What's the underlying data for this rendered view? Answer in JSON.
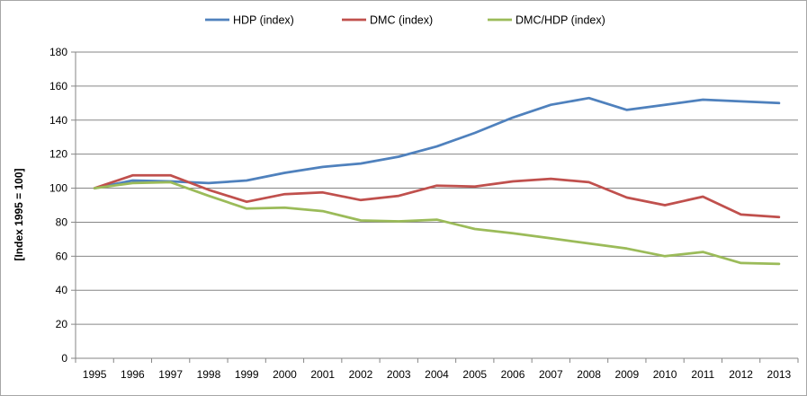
{
  "chart_data": {
    "type": "line",
    "title": "",
    "xlabel": "",
    "ylabel": "[Index 1995 = 100]",
    "x": [
      1995,
      1996,
      1997,
      1998,
      1999,
      2000,
      2001,
      2002,
      2003,
      2004,
      2005,
      2006,
      2007,
      2008,
      2009,
      2010,
      2011,
      2012,
      2013
    ],
    "x_tick_labels": [
      "1995",
      "1996",
      "1997",
      "1998",
      "1999",
      "2000",
      "2001",
      "2002",
      "2003",
      "2004",
      "2005",
      "2006",
      "2007",
      "2008",
      "2009",
      "2010",
      "2011",
      "2012",
      "2013"
    ],
    "ylim": [
      0,
      180
    ],
    "y_ticks": [
      0,
      20,
      40,
      60,
      80,
      100,
      120,
      140,
      160,
      180
    ],
    "y_tick_labels": [
      "0",
      "20",
      "40",
      "60",
      "80",
      "100",
      "120",
      "140",
      "160",
      "180"
    ],
    "grid": "horizontal",
    "legend_position": "top",
    "series": [
      {
        "name": "HDP (index)",
        "color": "#4f81bd",
        "values": [
          100,
          104.5,
          104,
          103,
          104.5,
          109,
          112.5,
          114.5,
          118.5,
          124.5,
          132.5,
          141.5,
          149,
          153,
          146,
          149,
          152,
          151,
          150
        ]
      },
      {
        "name": "DMC (index)",
        "color": "#c0504d",
        "values": [
          100,
          107.5,
          107.5,
          99,
          92,
          96.5,
          97.5,
          93,
          95.5,
          101.5,
          101,
          104,
          105.5,
          103.5,
          94.5,
          90,
          95,
          84.5,
          83
        ]
      },
      {
        "name": "DMC/HDP (index)",
        "color": "#9bbb59",
        "values": [
          100,
          103,
          103.5,
          95.5,
          88,
          88.5,
          86.5,
          81,
          80.5,
          81.5,
          76,
          73.5,
          70.5,
          67.5,
          64.5,
          60,
          62.5,
          56,
          55.5
        ]
      }
    ]
  }
}
